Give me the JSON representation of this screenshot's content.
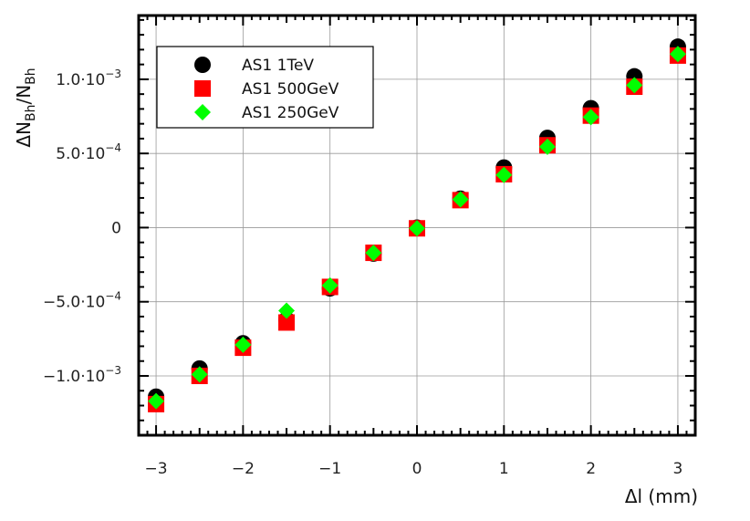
{
  "chart_data": {
    "type": "scatter",
    "xlabel": "Δl (mm)",
    "ylabel": {
      "main": "ΔN",
      "sub1": "Bh",
      "mid": "/N",
      "sub2": "Bh"
    },
    "xlim": [
      -3.2,
      3.2
    ],
    "ylim": [
      -0.0014,
      0.00143
    ],
    "grid": true,
    "legend_position": "top-left",
    "x_ticks": [
      {
        "value": -3,
        "label": "−3"
      },
      {
        "value": -2,
        "label": "−2"
      },
      {
        "value": -1,
        "label": "−1"
      },
      {
        "value": 0,
        "label": "0"
      },
      {
        "value": 1,
        "label": "1"
      },
      {
        "value": 2,
        "label": "2"
      },
      {
        "value": 3,
        "label": "3"
      }
    ],
    "y_ticks": [
      {
        "value": 0.001,
        "mantissa": "1.0·10",
        "exp": "−3"
      },
      {
        "value": 0.0005,
        "mantissa": "5.0·10",
        "exp": "−4"
      },
      {
        "value": 0,
        "mantissa": "0",
        "exp": ""
      },
      {
        "value": -0.0005,
        "mantissa": "−5.0·10",
        "exp": "−4"
      },
      {
        "value": -0.001,
        "mantissa": "−1.0·10",
        "exp": "−3"
      }
    ],
    "series": [
      {
        "name": "AS1 1TeV",
        "marker": "circle",
        "color": "#000000",
        "x": [
          -3,
          -2.5,
          -2,
          -1.5,
          -1,
          -0.5,
          0,
          0.5,
          1,
          1.5,
          2,
          2.5,
          3
        ],
        "y": [
          -0.00114,
          -0.00095,
          -0.00078,
          -0.00062,
          -0.00041,
          -0.000175,
          0.0,
          0.000195,
          0.000405,
          0.000605,
          0.000805,
          0.00102,
          0.00122
        ]
      },
      {
        "name": "AS1 500GeV",
        "marker": "square",
        "color": "#ff0000",
        "x": [
          -3,
          -2.5,
          -2,
          -1.5,
          -1,
          -0.5,
          0,
          0.5,
          1,
          1.5,
          2,
          2.5,
          3
        ],
        "y": [
          -0.00119,
          -0.001,
          -0.00081,
          -0.00064,
          -0.0004,
          -0.00017,
          -5e-06,
          0.000185,
          0.00036,
          0.000555,
          0.000755,
          0.00095,
          0.00116
        ]
      },
      {
        "name": "AS1 250GeV",
        "marker": "diamond",
        "color": "#00ff00",
        "x": [
          -3,
          -2.5,
          -2,
          -1.5,
          -1,
          -0.5,
          0,
          0.5,
          1,
          1.5,
          2,
          2.5,
          3
        ],
        "y": [
          -0.00117,
          -0.00099,
          -0.00079,
          -0.00056,
          -0.00039,
          -0.00017,
          -5e-06,
          0.00019,
          0.000355,
          0.000545,
          0.000745,
          0.00096,
          0.00117
        ]
      }
    ]
  }
}
